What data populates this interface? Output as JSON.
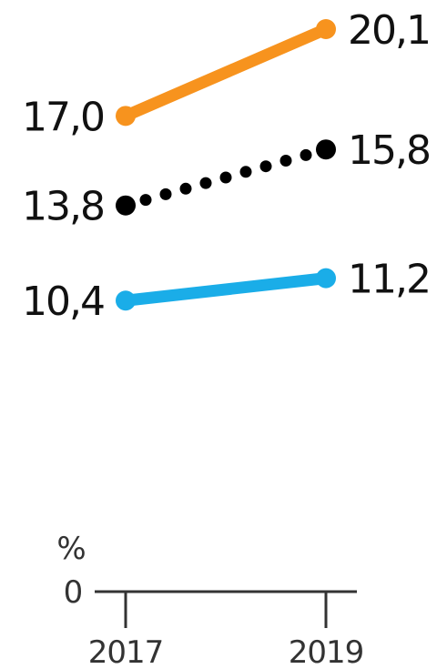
{
  "chart_data": {
    "type": "line",
    "x": [
      "2017",
      "2019"
    ],
    "ylim": [
      0,
      20.1
    ],
    "y_ticks": [
      "0"
    ],
    "y_unit": "%",
    "series": [
      {
        "values": [
          17.0,
          20.1
        ],
        "labels": [
          "17,0",
          "20,1"
        ],
        "color": "#F7931E",
        "style": "solid"
      },
      {
        "values": [
          13.8,
          15.8
        ],
        "labels": [
          "13,8",
          "15,8"
        ],
        "color": "#000000",
        "style": "dotted"
      },
      {
        "values": [
          10.4,
          11.2
        ],
        "labels": [
          "10,4",
          "11,2"
        ],
        "color": "#1AADE8",
        "style": "solid"
      }
    ]
  }
}
